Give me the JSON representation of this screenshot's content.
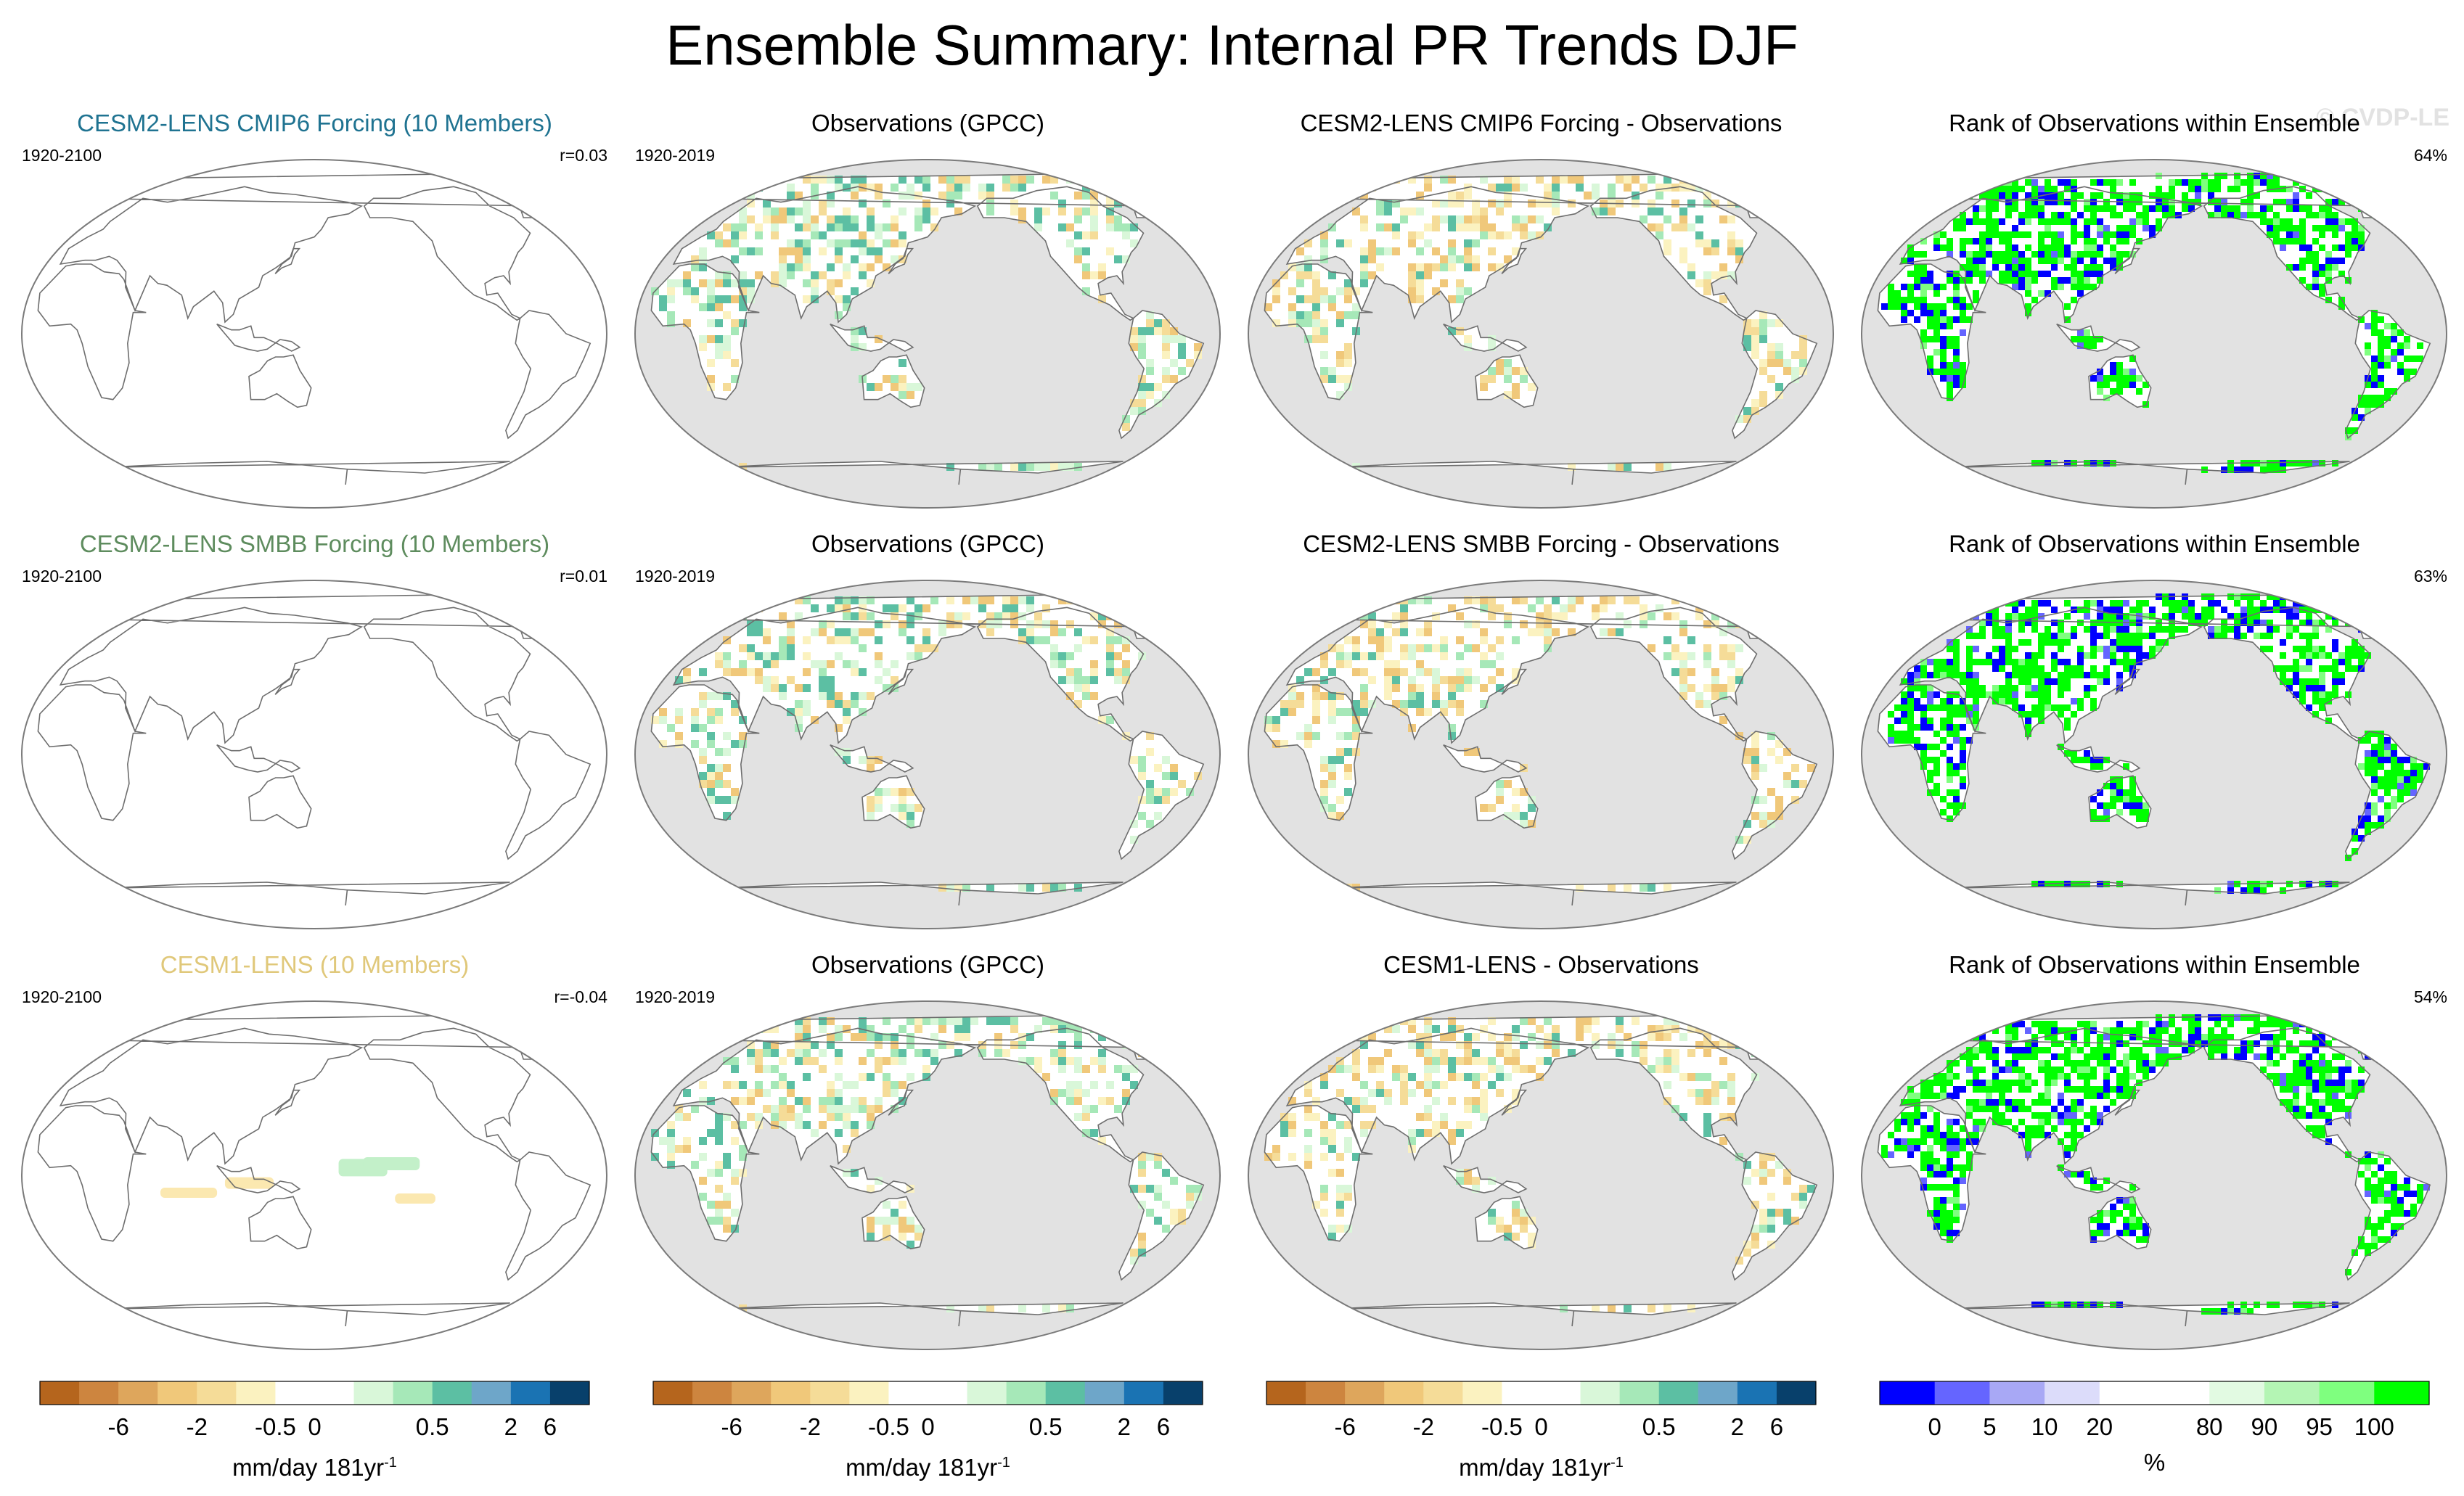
{
  "title": "Ensemble Summary: Internal PR Trends DJF",
  "watermark": "© CVDP-LE",
  "chart_data": {
    "type": "heatmap",
    "projection": "Robinson (Pacific-centered)",
    "season": "DJF",
    "variable": "PR",
    "rows": [
      {
        "model": {
          "title": "CESM2-LENS CMIP6 Forcing (10 Members)",
          "title_color": "#1f7391",
          "years": "1920-2100",
          "stat": "r=0.03"
        },
        "obs": {
          "title": "Observations (GPCC)",
          "years": "1920-2019"
        },
        "diff": {
          "title": "CESM2-LENS CMIP6 Forcing - Observations"
        },
        "rank": {
          "title": "Rank of Observations within Ensemble",
          "stat": "64%"
        }
      },
      {
        "model": {
          "title": "CESM2-LENS SMBB Forcing (10 Members)",
          "title_color": "#5e8c5e",
          "years": "1920-2100",
          "stat": "r=0.01"
        },
        "obs": {
          "title": "Observations (GPCC)",
          "years": "1920-2019"
        },
        "diff": {
          "title": "CESM2-LENS SMBB Forcing - Observations"
        },
        "rank": {
          "title": "Rank of Observations within Ensemble",
          "stat": "63%"
        }
      },
      {
        "model": {
          "title": "CESM1-LENS (10 Members)",
          "title_color": "#e0c87a",
          "years": "1920-2100",
          "stat": "r=-0.04"
        },
        "obs": {
          "title": "Observations (GPCC)",
          "years": "1920-2019"
        },
        "diff": {
          "title": "CESM1-LENS - Observations"
        },
        "rank": {
          "title": "Rank of Observations within Ensemble",
          "stat": "54%"
        }
      }
    ],
    "trend_colorbar": {
      "colors": [
        "#b5651d",
        "#cd853f",
        "#dea65c",
        "#f0c87a",
        "#f5dc98",
        "#fbf2c0",
        "#ffffff",
        "#ffffff",
        "#d9f7d9",
        "#a6e8b8",
        "#5cbfa3",
        "#6ea6c9",
        "#1a73b3",
        "#08406b"
      ],
      "tick_labels": [
        "-6",
        "-2",
        "-0.5",
        "0",
        "0.5",
        "2",
        "6"
      ],
      "units": "mm/day 181yr",
      "units_sup": "-1"
    },
    "rank_colorbar": {
      "colors": [
        "#0000ff",
        "#6565ff",
        "#a8a8f5",
        "#dcdcfa",
        "#ffffff",
        "#ffffff",
        "#e2fae2",
        "#b4f5b4",
        "#7fff7f",
        "#00ff00"
      ],
      "tick_labels": [
        "0",
        "5",
        "10",
        "20",
        "80",
        "90",
        "95",
        "100"
      ],
      "units": "%"
    },
    "palette": {
      "ocean": "#e2e2e2",
      "coast": "#6e6e6e",
      "rank_high": "#00ff00",
      "rank_low": "#0000ff"
    }
  }
}
